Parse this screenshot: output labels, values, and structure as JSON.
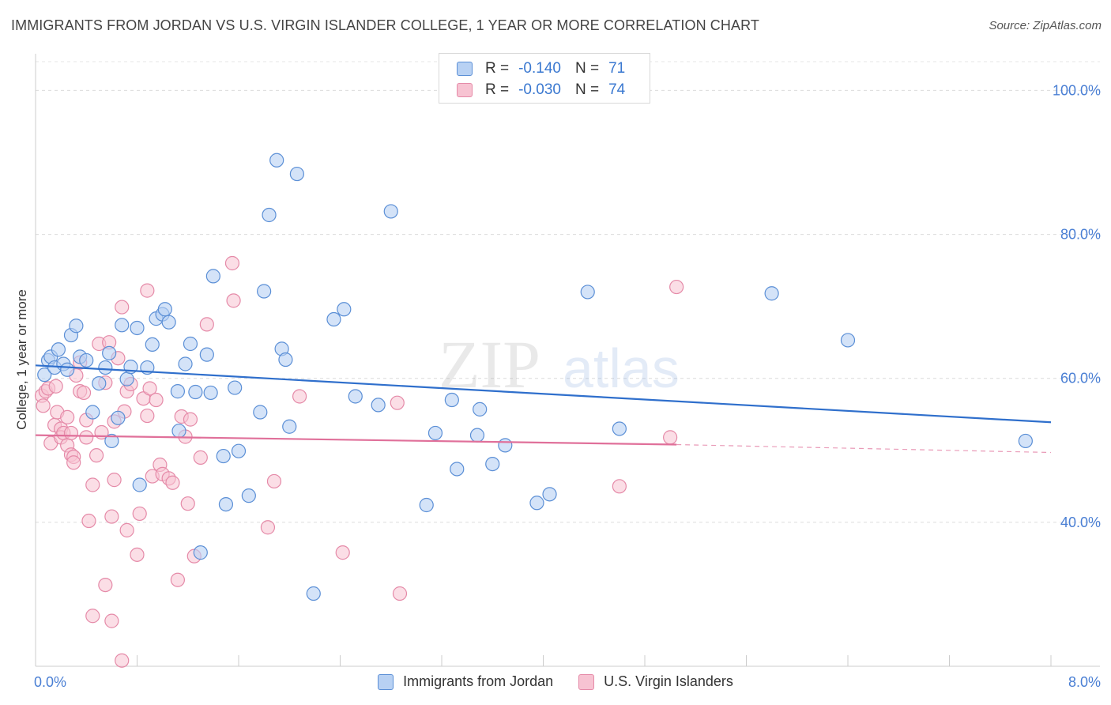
{
  "header": {
    "title": "IMMIGRANTS FROM JORDAN VS U.S. VIRGIN ISLANDER COLLEGE, 1 YEAR OR MORE CORRELATION CHART",
    "source": "Source: ZipAtlas.com"
  },
  "watermark": {
    "zip": "ZIP",
    "atlas": "atlas"
  },
  "legend": {
    "r_label": "R =",
    "n_label": "N =",
    "series1": {
      "r": "-0.140",
      "n": "71"
    },
    "series2": {
      "r": "-0.030",
      "n": "74"
    }
  },
  "colors": {
    "blue_fill": "#b8d1f3",
    "blue_stroke": "#5b8fd6",
    "blue_line": "#2f6fcc",
    "pink_fill": "#f7c3d2",
    "pink_stroke": "#e58aa8",
    "pink_line": "#e0709a",
    "tick_text": "#4a7fd4"
  },
  "chart_data": {
    "type": "scatter",
    "title": "IMMIGRANTS FROM JORDAN VS U.S. VIRGIN ISLANDER COLLEGE, 1 YEAR OR MORE CORRELATION CHART",
    "xlabel": "",
    "ylabel": "College, 1 year or more",
    "xlim": [
      0,
      8
    ],
    "ylim": [
      20,
      104
    ],
    "x_tick_labels": [
      "0.0%",
      "8.0%"
    ],
    "y_ticks": [
      40,
      60,
      80,
      100
    ],
    "y_tick_labels": [
      "40.0%",
      "60.0%",
      "80.0%",
      "100.0%"
    ],
    "grid": true,
    "legend_placement": "bottom",
    "series": [
      {
        "name": "Immigrants from Jordan",
        "color": "#5b8fd6",
        "r": -0.14,
        "n": 71,
        "trend": {
          "x": [
            0.0,
            8.0
          ],
          "y": [
            61.8,
            53.9
          ]
        },
        "points": [
          [
            0.07,
            60.5
          ],
          [
            0.1,
            62.5
          ],
          [
            0.12,
            63.0
          ],
          [
            0.15,
            61.5
          ],
          [
            0.18,
            64.0
          ],
          [
            0.22,
            62.0
          ],
          [
            0.25,
            61.2
          ],
          [
            0.28,
            66.0
          ],
          [
            0.32,
            67.3
          ],
          [
            0.35,
            63.0
          ],
          [
            0.4,
            62.5
          ],
          [
            0.45,
            55.3
          ],
          [
            0.5,
            59.3
          ],
          [
            0.55,
            61.5
          ],
          [
            0.58,
            63.5
          ],
          [
            0.6,
            51.3
          ],
          [
            0.65,
            54.5
          ],
          [
            0.68,
            67.4
          ],
          [
            0.72,
            59.9
          ],
          [
            0.75,
            61.6
          ],
          [
            0.8,
            67.0
          ],
          [
            0.82,
            45.2
          ],
          [
            0.88,
            61.5
          ],
          [
            0.92,
            64.7
          ],
          [
            0.95,
            68.3
          ],
          [
            1.0,
            68.9
          ],
          [
            1.02,
            69.6
          ],
          [
            1.05,
            67.8
          ],
          [
            1.12,
            58.2
          ],
          [
            1.13,
            52.7
          ],
          [
            1.18,
            62.0
          ],
          [
            1.22,
            64.8
          ],
          [
            1.26,
            58.1
          ],
          [
            1.3,
            35.8
          ],
          [
            1.35,
            63.3
          ],
          [
            1.38,
            58.0
          ],
          [
            1.4,
            74.2
          ],
          [
            1.48,
            49.2
          ],
          [
            1.5,
            42.5
          ],
          [
            1.57,
            58.7
          ],
          [
            1.6,
            49.9
          ],
          [
            1.68,
            43.7
          ],
          [
            1.77,
            55.3
          ],
          [
            1.8,
            72.1
          ],
          [
            1.84,
            82.7
          ],
          [
            1.9,
            90.3
          ],
          [
            1.94,
            64.1
          ],
          [
            1.97,
            62.6
          ],
          [
            2.0,
            53.3
          ],
          [
            2.06,
            88.4
          ],
          [
            2.19,
            30.1
          ],
          [
            2.35,
            68.2
          ],
          [
            2.43,
            69.6
          ],
          [
            2.52,
            57.5
          ],
          [
            2.7,
            56.3
          ],
          [
            2.8,
            83.2
          ],
          [
            3.08,
            42.4
          ],
          [
            3.15,
            52.4
          ],
          [
            3.28,
            57.0
          ],
          [
            3.32,
            47.4
          ],
          [
            3.48,
            52.1
          ],
          [
            3.5,
            55.7
          ],
          [
            3.6,
            48.1
          ],
          [
            3.7,
            50.7
          ],
          [
            3.95,
            42.7
          ],
          [
            4.05,
            43.9
          ],
          [
            4.35,
            72.0
          ],
          [
            4.6,
            53.0
          ],
          [
            5.8,
            71.8
          ],
          [
            6.4,
            65.3
          ],
          [
            7.8,
            51.3
          ]
        ]
      },
      {
        "name": "U.S. Virgin Islanders",
        "color": "#e58aa8",
        "r": -0.03,
        "n": 74,
        "trend": {
          "x": [
            0.0,
            5.05
          ],
          "y": [
            52.1,
            50.8
          ]
        },
        "trend_dashed": {
          "x": [
            5.05,
            8.0
          ],
          "y": [
            50.8,
            49.7
          ]
        },
        "points": [
          [
            0.05,
            57.6
          ],
          [
            0.06,
            56.2
          ],
          [
            0.08,
            58.2
          ],
          [
            0.1,
            58.6
          ],
          [
            0.12,
            51.0
          ],
          [
            0.15,
            53.5
          ],
          [
            0.16,
            58.9
          ],
          [
            0.17,
            55.3
          ],
          [
            0.2,
            53.0
          ],
          [
            0.2,
            51.8
          ],
          [
            0.22,
            52.4
          ],
          [
            0.25,
            54.6
          ],
          [
            0.25,
            50.7
          ],
          [
            0.28,
            52.4
          ],
          [
            0.28,
            49.4
          ],
          [
            0.3,
            49.1
          ],
          [
            0.3,
            48.3
          ],
          [
            0.32,
            60.4
          ],
          [
            0.35,
            62.2
          ],
          [
            0.35,
            58.2
          ],
          [
            0.38,
            58.0
          ],
          [
            0.4,
            54.2
          ],
          [
            0.4,
            51.8
          ],
          [
            0.42,
            40.2
          ],
          [
            0.45,
            45.2
          ],
          [
            0.48,
            49.3
          ],
          [
            0.5,
            64.8
          ],
          [
            0.52,
            52.5
          ],
          [
            0.55,
            59.4
          ],
          [
            0.55,
            31.3
          ],
          [
            0.58,
            65.0
          ],
          [
            0.6,
            40.8
          ],
          [
            0.62,
            45.9
          ],
          [
            0.62,
            54.0
          ],
          [
            0.65,
            62.8
          ],
          [
            0.68,
            69.9
          ],
          [
            0.7,
            55.4
          ],
          [
            0.72,
            58.2
          ],
          [
            0.72,
            38.9
          ],
          [
            0.75,
            59.2
          ],
          [
            0.8,
            35.5
          ],
          [
            0.82,
            41.2
          ],
          [
            0.85,
            57.2
          ],
          [
            0.88,
            54.8
          ],
          [
            0.88,
            72.2
          ],
          [
            0.9,
            58.6
          ],
          [
            0.92,
            46.4
          ],
          [
            0.95,
            57.0
          ],
          [
            0.98,
            48.0
          ],
          [
            1.0,
            46.7
          ],
          [
            1.05,
            46.1
          ],
          [
            1.08,
            45.5
          ],
          [
            1.12,
            32.0
          ],
          [
            1.15,
            54.7
          ],
          [
            1.18,
            51.9
          ],
          [
            1.2,
            42.6
          ],
          [
            1.22,
            54.3
          ],
          [
            1.25,
            35.3
          ],
          [
            1.3,
            49.0
          ],
          [
            1.35,
            67.5
          ],
          [
            1.55,
            76.0
          ],
          [
            1.56,
            70.8
          ],
          [
            1.83,
            39.3
          ],
          [
            1.88,
            45.7
          ],
          [
            2.08,
            57.5
          ],
          [
            2.42,
            35.8
          ],
          [
            2.85,
            56.6
          ],
          [
            2.87,
            30.1
          ],
          [
            4.6,
            45.0
          ],
          [
            5.0,
            51.8
          ],
          [
            5.05,
            72.7
          ],
          [
            0.45,
            27.0
          ],
          [
            0.68,
            20.8
          ],
          [
            0.6,
            26.3
          ]
        ]
      }
    ]
  },
  "bottom_legend": {
    "series1_label": "Immigrants from Jordan",
    "series2_label": "U.S. Virgin Islanders"
  }
}
